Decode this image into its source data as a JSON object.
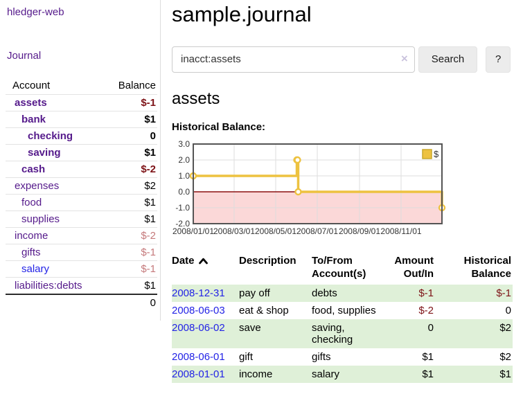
{
  "app": {
    "brand": "hledger-web",
    "journal_link": "Journal"
  },
  "sidebar": {
    "headers": [
      "Account",
      "Balance"
    ],
    "accounts": [
      {
        "name": "assets",
        "depth": 1,
        "bold": true,
        "balance": "$-1"
      },
      {
        "name": "bank",
        "depth": 2,
        "bold": true,
        "balance": "$1"
      },
      {
        "name": "checking",
        "depth": 3,
        "bold": true,
        "balance": "0"
      },
      {
        "name": "saving",
        "depth": 3,
        "bold": true,
        "balance": "$1"
      },
      {
        "name": "cash",
        "depth": 2,
        "bold": true,
        "balance": "$-2"
      },
      {
        "name": "expenses",
        "depth": 1,
        "bold": false,
        "balance": "$2"
      },
      {
        "name": "food",
        "depth": 2,
        "bold": false,
        "balance": "$1"
      },
      {
        "name": "supplies",
        "depth": 2,
        "bold": false,
        "balance": "$1"
      },
      {
        "name": "income",
        "depth": 1,
        "bold": false,
        "balance": "$-2"
      },
      {
        "name": "gifts",
        "depth": 2,
        "bold": false,
        "balance": "$-1"
      },
      {
        "name": "salary",
        "depth": 2,
        "bold": false,
        "balance": "$-1",
        "unvisited": true
      },
      {
        "name": "liabilities:debts",
        "depth": 1,
        "bold": false,
        "balance": "$1"
      }
    ],
    "total": "0"
  },
  "header": {
    "title": "sample.journal"
  },
  "search": {
    "value": "inacct:assets",
    "clear_icon": "×",
    "button_label": "Search",
    "help_label": "?"
  },
  "account_page": {
    "heading": "assets",
    "chart_label": "Historical Balance:"
  },
  "chart_data": {
    "type": "line",
    "step": true,
    "series": [
      {
        "name": "$",
        "color": "#edc240",
        "points": [
          [
            "2008-01-01",
            1
          ],
          [
            "2008-06-01",
            2
          ],
          [
            "2008-06-02",
            2
          ],
          [
            "2008-06-03",
            0
          ],
          [
            "2008-12-31",
            -1
          ]
        ]
      }
    ],
    "x_tick_labels": [
      "2008/01/01",
      "2008/03/01",
      "2008/05/01",
      "2008/07/01",
      "2008/09/01",
      "2008/11/01"
    ],
    "y_tick_labels": [
      "3.0",
      "2.0",
      "1.0",
      "0.0",
      "-1.0",
      "-2.0"
    ],
    "ylim": [
      -2,
      3
    ],
    "x_range": [
      "2008-01-01",
      "2008-12-31"
    ],
    "grid": true,
    "legend_position": "top-right",
    "negative_region_color": "#fbd8d8",
    "zero_line_color": "#8b1010",
    "title": "Historical Balance:"
  },
  "register": {
    "columns": [
      "Date",
      "Description",
      "To/From Account(s)",
      "Amount Out/In",
      "Historical Balance"
    ],
    "rows": [
      {
        "date": "2008-12-31",
        "description": "pay off",
        "accounts": "debts",
        "amount": "$-1",
        "balance": "$-1"
      },
      {
        "date": "2008-06-03",
        "description": "eat & shop",
        "accounts": "food, supplies",
        "amount": "$-2",
        "balance": "0"
      },
      {
        "date": "2008-06-02",
        "description": "save",
        "accounts": "saving, checking",
        "amount": "0",
        "balance": "$2"
      },
      {
        "date": "2008-06-01",
        "description": "gift",
        "accounts": "gifts",
        "amount": "$1",
        "balance": "$2"
      },
      {
        "date": "2008-01-01",
        "description": "income",
        "accounts": "salary",
        "amount": "$1",
        "balance": "$1"
      }
    ]
  },
  "colors": {
    "link_purple": "#551a8b",
    "link_blue": "#2323e6",
    "negative_strong": "#7d1216",
    "negative_soft": "#c5797b",
    "row_highlight": "#dff0d8",
    "series_gold": "#edc240"
  }
}
